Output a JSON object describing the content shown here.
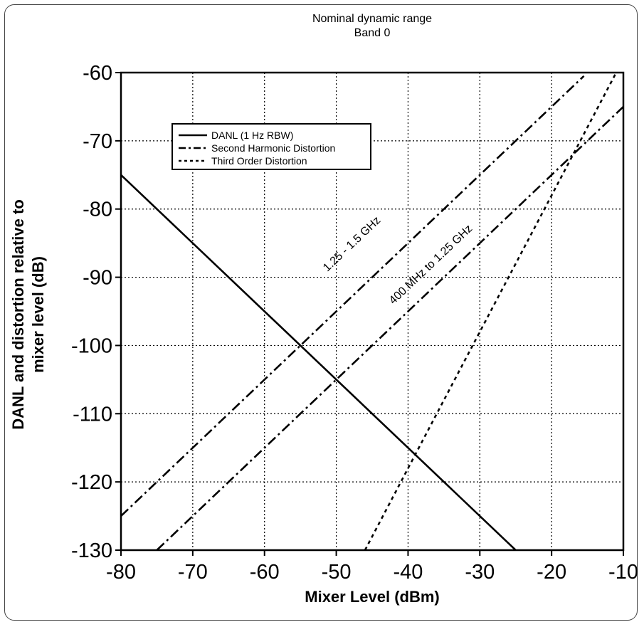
{
  "chart_data": {
    "type": "line",
    "title": "Nominal dynamic range",
    "subtitle": "Band 0",
    "xlabel": "Mixer Level (dBm)",
    "ylabel_lines": [
      "DANL and distortion  relative to",
      "mixer level (dB)"
    ],
    "xlim": [
      -80,
      -10
    ],
    "ylim": [
      -130,
      -60
    ],
    "xticks": [
      -80,
      -70,
      -60,
      -50,
      -40,
      -30,
      -20,
      -10
    ],
    "yticks": [
      -60,
      -70,
      -80,
      -90,
      -100,
      -110,
      -120,
      -130
    ],
    "xtick_labels": [
      "-80",
      "-70",
      "-60",
      "-50",
      "-40",
      "-30",
      "-20",
      "-10"
    ],
    "ytick_labels": [
      "-60",
      "-70",
      "-80",
      "-90",
      "-100",
      "-110",
      "-120",
      "-130"
    ],
    "grid": true,
    "legend_position": "top-left",
    "legend": [
      {
        "label": "DANL (1 Hz RBW)",
        "style": "solid"
      },
      {
        "label": "Second Harmonic Distortion",
        "style": "dash-dot"
      },
      {
        "label": "Third Order Distortion",
        "style": "dotted"
      }
    ],
    "series": [
      {
        "name": "DANL (1 Hz RBW)",
        "style": "solid",
        "x": [
          -80,
          -25
        ],
        "y": [
          -75,
          -130
        ]
      },
      {
        "name": "Second Harmonic Distortion",
        "style": "dash-dot",
        "x": [
          -80,
          -15.5
        ],
        "y": [
          -125,
          -60.5
        ]
      },
      {
        "name": "Second Harmonic Distortion",
        "style": "dash-dot",
        "x": [
          -75,
          -10
        ],
        "y": [
          -130,
          -65
        ]
      },
      {
        "name": "Third Order Distortion",
        "style": "dotted",
        "x": [
          -46,
          -11
        ],
        "y": [
          -130,
          -60
        ]
      }
    ],
    "annotations": [
      {
        "text": "1.25 - 1.5 GHz",
        "x": -47.5,
        "y": -85.5
      },
      {
        "text": "400 MHz to 1.25 GHz",
        "x": -36.5,
        "y": -88.5
      }
    ]
  }
}
